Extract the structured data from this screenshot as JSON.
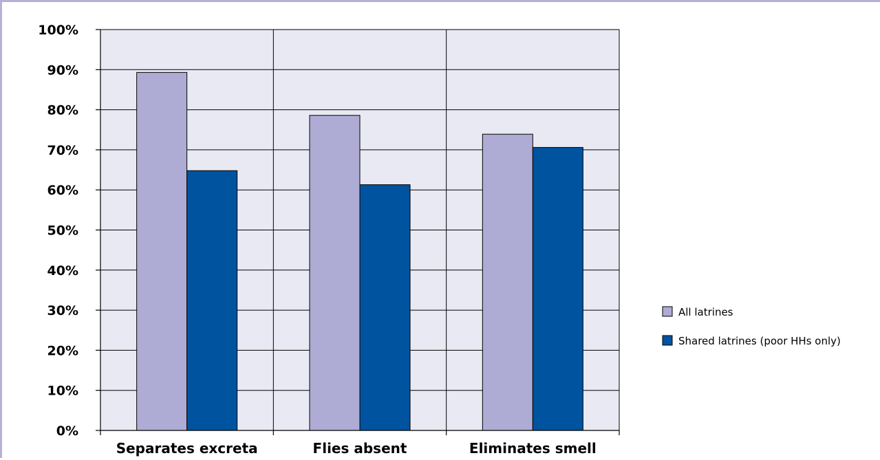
{
  "chart_data": {
    "type": "bar",
    "title": "",
    "xlabel": "",
    "ylabel": "",
    "categories": [
      "Separates excreta",
      "Flies absent",
      "Eliminates smell"
    ],
    "series": [
      {
        "name": "All latrines",
        "values": [
          89.3,
          78.6,
          73.9
        ],
        "color": "#aeacd4"
      },
      {
        "name": "Shared latrines (poor HHs only)",
        "values": [
          64.8,
          61.3,
          70.6
        ],
        "color": "#00539f"
      }
    ],
    "ylim": [
      0,
      100
    ],
    "yticks": [
      0,
      10,
      20,
      30,
      40,
      50,
      60,
      70,
      80,
      90,
      100
    ],
    "ytick_labels": [
      "0%",
      "10%",
      "20%",
      "30%",
      "40%",
      "50%",
      "60%",
      "70%",
      "80%",
      "90%",
      "100%"
    ],
    "grid": true,
    "legend_position": "right",
    "plot_background": "#e9e9f4"
  }
}
